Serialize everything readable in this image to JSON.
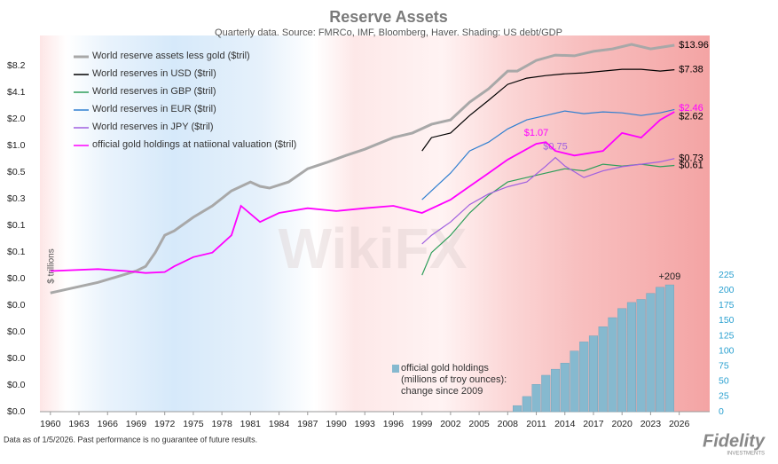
{
  "chart_data": {
    "type": "line",
    "title": "Reserve Assets",
    "subtitle": "Quarterly data.  Source: FMRCo, IMF, Bloomberg, Haver. Shading: US debt/GDP",
    "ylabel": "$ trillions",
    "log_scale_y": true,
    "xlim": [
      1958.9,
      2029.2
    ],
    "xticks": [
      1960,
      1963,
      1966,
      1969,
      1972,
      1975,
      1978,
      1981,
      1984,
      1987,
      1990,
      1993,
      1996,
      1999,
      2002,
      2005,
      2008,
      2011,
      2014,
      2017,
      2020,
      2023,
      2026
    ],
    "ylim": [
      0.001,
      18
    ],
    "yticks": [
      {
        "value": 8.192,
        "label": "$8.2"
      },
      {
        "value": 4.096,
        "label": "$4.1"
      },
      {
        "value": 2.048,
        "label": "$2.0"
      },
      {
        "value": 1.024,
        "label": "$1.0"
      },
      {
        "value": 0.512,
        "label": "$0.5"
      },
      {
        "value": 0.256,
        "label": "$0.3"
      },
      {
        "value": 0.128,
        "label": "$0.1"
      },
      {
        "value": 0.064,
        "label": "$0.1"
      },
      {
        "value": 0.032,
        "label": "$0.0"
      },
      {
        "value": 0.016,
        "label": "$0.0"
      },
      {
        "value": 0.008,
        "label": "$0.0"
      },
      {
        "value": 0.004,
        "label": "$0.0"
      },
      {
        "value": 0.002,
        "label": "$0.0"
      },
      {
        "value": 0.001,
        "label": "$0.0"
      }
    ],
    "y2lim": [
      0,
      620
    ],
    "y2ticks": [
      0,
      25,
      50,
      75,
      100,
      125,
      150,
      175,
      200,
      225
    ],
    "series": [
      {
        "name": "World reserve assets less gold ($tril)",
        "color": "#a8a8a8",
        "x": [
          1960,
          1965,
          1969,
          1970,
          1971,
          1972,
          1973,
          1975,
          1977,
          1979,
          1981,
          1982,
          1983,
          1985,
          1987,
          1989,
          1991,
          1993,
          1996,
          1998,
          2000,
          2002,
          2004,
          2006,
          2008,
          2009,
          2011,
          2013,
          2015,
          2017,
          2019,
          2021,
          2023,
          2025.5
        ],
        "values": [
          0.022,
          0.029,
          0.039,
          0.044,
          0.063,
          0.099,
          0.111,
          0.158,
          0.213,
          0.315,
          0.397,
          0.354,
          0.338,
          0.397,
          0.56,
          0.66,
          0.79,
          0.93,
          1.26,
          1.42,
          1.78,
          2.0,
          3.17,
          4.49,
          7.13,
          7.13,
          9.41,
          10.8,
          10.6,
          11.9,
          12.7,
          14.3,
          12.7,
          13.96
        ],
        "value_labels": [
          null,
          null,
          null,
          null,
          null,
          null,
          null,
          null,
          null,
          null,
          null,
          null,
          null,
          null,
          null,
          null,
          null,
          null,
          null,
          null,
          null,
          null,
          null,
          null,
          null,
          null,
          null,
          null,
          null,
          null,
          null,
          null,
          null,
          "$13.96"
        ]
      },
      {
        "name": "World reserves in USD ($tril)",
        "color": "#000000",
        "x": [
          1999,
          2000,
          2002,
          2004,
          2006,
          2008,
          2010,
          2012,
          2014,
          2016,
          2018,
          2020,
          2022,
          2024,
          2025.5
        ],
        "values": [
          0.89,
          1.26,
          1.42,
          2.24,
          3.33,
          5.04,
          5.92,
          6.34,
          6.63,
          6.8,
          7.13,
          7.47,
          7.47,
          7.13,
          7.38
        ],
        "value_labels": [
          null,
          null,
          null,
          null,
          null,
          null,
          null,
          null,
          null,
          null,
          null,
          null,
          null,
          null,
          "$7.38"
        ]
      },
      {
        "name": "World reserves in GBP ($tril)",
        "color": "#2e9e5a",
        "x": [
          1999,
          2000,
          2002,
          2004,
          2006,
          2008,
          2010,
          2012,
          2014,
          2016,
          2018,
          2020,
          2022,
          2024,
          2025.5
        ],
        "values": [
          0.035,
          0.063,
          0.099,
          0.177,
          0.28,
          0.397,
          0.445,
          0.5,
          0.56,
          0.53,
          0.63,
          0.6,
          0.63,
          0.59,
          0.61
        ],
        "value_labels": [
          null,
          null,
          null,
          null,
          null,
          null,
          null,
          null,
          null,
          null,
          null,
          null,
          null,
          null,
          "$0.61"
        ]
      },
      {
        "name": "World reserves in EUR ($tril)",
        "color": "#2f7fd0",
        "x": [
          1999,
          2000,
          2002,
          2004,
          2006,
          2008,
          2010,
          2012,
          2014,
          2016,
          2018,
          2020,
          2022,
          2024,
          2025.5
        ],
        "values": [
          0.25,
          0.315,
          0.5,
          0.89,
          1.12,
          1.58,
          2.0,
          2.24,
          2.52,
          2.35,
          2.46,
          2.4,
          2.24,
          2.4,
          2.62
        ],
        "value_labels": [
          null,
          null,
          null,
          null,
          null,
          null,
          null,
          null,
          null,
          null,
          null,
          null,
          null,
          null,
          "$2.62"
        ]
      },
      {
        "name": "World reserves in JPY ($tril)",
        "color": "#a060e0",
        "x": [
          1999,
          2000,
          2002,
          2004,
          2006,
          2008,
          2010,
          2012,
          2013,
          2014,
          2016,
          2018,
          2020,
          2022,
          2024,
          2025.5
        ],
        "values": [
          0.079,
          0.099,
          0.14,
          0.22,
          0.29,
          0.35,
          0.397,
          0.6,
          0.75,
          0.6,
          0.445,
          0.53,
          0.59,
          0.63,
          0.67,
          0.73
        ],
        "value_labels": [
          null,
          null,
          null,
          null,
          null,
          null,
          null,
          null,
          "$0.75",
          null,
          null,
          null,
          null,
          null,
          null,
          "$0.73"
        ]
      },
      {
        "name": "official gold holdings at natiional valuation ($tril)",
        "color": "#ff00ff",
        "x": [
          1960,
          1965,
          1968,
          1970,
          1972,
          1973,
          1975,
          1977,
          1979,
          1980,
          1982,
          1984,
          1987,
          1990,
          1993,
          1996,
          1999,
          2002,
          2004,
          2006,
          2008,
          2011,
          2012,
          2013,
          2015,
          2018,
          2020,
          2022,
          2024,
          2025.5
        ],
        "values": [
          0.039,
          0.041,
          0.039,
          0.037,
          0.038,
          0.044,
          0.056,
          0.063,
          0.099,
          0.213,
          0.14,
          0.177,
          0.2,
          0.186,
          0.2,
          0.213,
          0.177,
          0.25,
          0.354,
          0.5,
          0.71,
          1.07,
          1.12,
          0.89,
          0.79,
          0.89,
          1.42,
          1.26,
          2.0,
          2.46
        ],
        "value_labels": [
          null,
          null,
          null,
          null,
          null,
          null,
          null,
          null,
          null,
          null,
          null,
          null,
          null,
          null,
          null,
          null,
          null,
          null,
          null,
          null,
          null,
          "$1.07",
          null,
          null,
          null,
          null,
          null,
          null,
          null,
          "$2.46"
        ]
      },
      {
        "name": "official gold holdings\n(millions of troy ounces):\nchange since 2009",
        "type": "bar",
        "axis": "y2",
        "color": "#86b9cf",
        "x": [
          2009,
          2010,
          2011,
          2012,
          2013,
          2014,
          2015,
          2016,
          2017,
          2018,
          2019,
          2020,
          2021,
          2022,
          2023,
          2024,
          2025
        ],
        "values": [
          10,
          25,
          45,
          60,
          70,
          80,
          100,
          115,
          125,
          140,
          155,
          170,
          180,
          185,
          195,
          205,
          209
        ],
        "value_labels": [
          null,
          null,
          null,
          null,
          null,
          null,
          null,
          null,
          null,
          null,
          null,
          null,
          null,
          null,
          null,
          null,
          "+209"
        ]
      }
    ]
  },
  "footer": {
    "note": "Data as of 1/5/2026. Past performance is no guarantee of future results.",
    "logo": "Fidelity",
    "logo_sub": "INVESTMENTS",
    "watermark": "WikiFX"
  }
}
